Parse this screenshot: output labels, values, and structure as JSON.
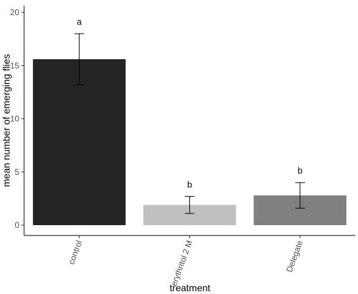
{
  "chart_data": {
    "type": "bar",
    "title": "",
    "xlabel": "treatment",
    "ylabel": "mean number of emerging flies",
    "categories": [
      "control",
      "erythritol 2 M",
      "Delegate"
    ],
    "values": [
      15.6,
      1.9,
      2.8
    ],
    "error_low": [
      13.2,
      1.1,
      1.6
    ],
    "error_high": [
      18.0,
      2.7,
      4.0
    ],
    "significance_labels": [
      "a",
      "b",
      "b"
    ],
    "bar_colors": [
      "#242424",
      "#c0c0c0",
      "#808080"
    ],
    "ylim": [
      0,
      20
    ],
    "yticks": [
      "0",
      "5",
      "10",
      "15",
      "20"
    ],
    "grid": false
  }
}
